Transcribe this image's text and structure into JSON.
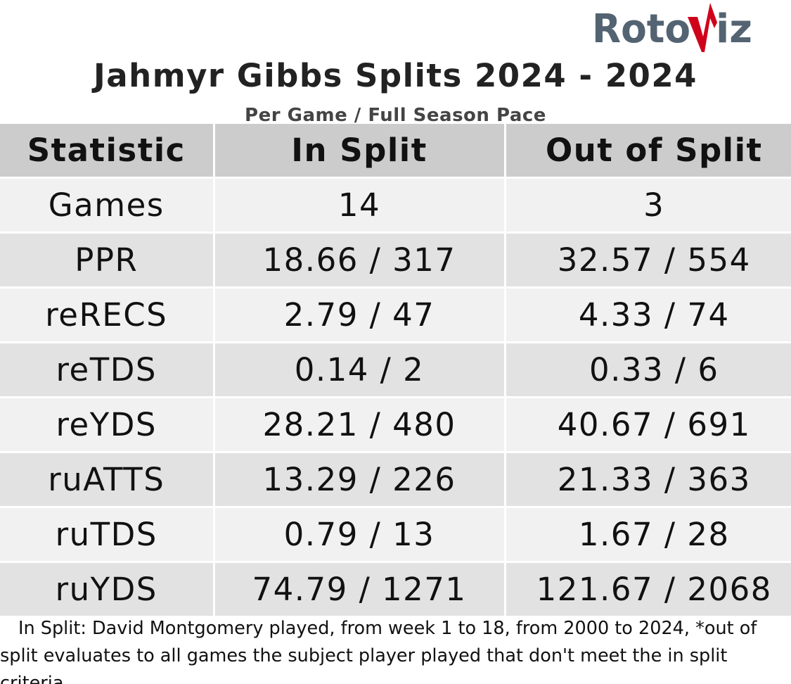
{
  "branding": {
    "logo_text": "RotoViz",
    "logo_color": "#536372",
    "logo_accent_color": "#d0021b"
  },
  "header": {
    "title": "Jahmyr Gibbs Splits 2024 - 2024",
    "subtitle": "Per Game / Full Season Pace"
  },
  "chart_data": {
    "type": "table",
    "columns": [
      "Statistic",
      "In Split",
      "Out of Split"
    ],
    "rows": [
      {
        "stat": "Games",
        "in_split": "14",
        "out_of_split": "3"
      },
      {
        "stat": "PPR",
        "in_split": "18.66 / 317",
        "out_of_split": "32.57 / 554"
      },
      {
        "stat": "reRECS",
        "in_split": "2.79 / 47",
        "out_of_split": "4.33 / 74"
      },
      {
        "stat": "reTDS",
        "in_split": "0.14 / 2",
        "out_of_split": "0.33 / 6"
      },
      {
        "stat": "reYDS",
        "in_split": "28.21 / 480",
        "out_of_split": "40.67 / 691"
      },
      {
        "stat": "ruATTS",
        "in_split": "13.29 / 226",
        "out_of_split": "21.33 / 363"
      },
      {
        "stat": "ruTDS",
        "in_split": "0.79 / 13",
        "out_of_split": "1.67 / 28"
      },
      {
        "stat": "ruYDS",
        "in_split": "74.79 / 1271",
        "out_of_split": "121.67 / 2068"
      }
    ]
  },
  "footnote": "In Split: David Montgomery played, from week 1 to 18, from 2000 to 2024,  *out of split evaluates to all games the subject player played that don't meet the in split criteria",
  "colors": {
    "header_bg": "#cccccc",
    "row_light": "#f1f1f1",
    "row_dark": "#e2e2e2",
    "title_text": "#222222",
    "subtitle_text": "#444444"
  }
}
